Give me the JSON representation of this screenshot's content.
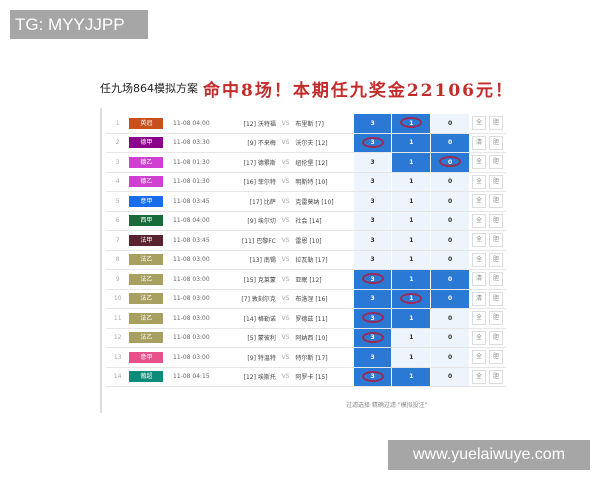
{
  "watermarks": {
    "top_left": "TG: MYYJJPP",
    "bottom_right": "www.yuelaiwuye.com"
  },
  "title": "任九场864模拟方案",
  "headline": "命中8场！本期任九奖金22106元！",
  "rows": [
    {
      "no": "1",
      "league": "英冠",
      "color": "#c8501e",
      "time": "11-08 04:00",
      "home": "[12] 沃特福",
      "away": "布里斯 [7]",
      "sel": [
        true,
        true,
        false
      ],
      "circle": 1,
      "btn": "全"
    },
    {
      "no": "2",
      "league": "德甲",
      "color": "#8b008b",
      "time": "11-08 03:30",
      "home": "[9] 不来梅",
      "away": "沃尔夫 [12]",
      "sel": [
        true,
        true,
        true
      ],
      "circle": 0,
      "btn": "清"
    },
    {
      "no": "3",
      "league": "德乙",
      "color": "#d040d0",
      "time": "11-08 01:30",
      "home": "[17] 德累斯",
      "away": "纽伦堡 [12]",
      "sel": [
        false,
        true,
        true
      ],
      "circle": 2,
      "btn": "全"
    },
    {
      "no": "4",
      "league": "德乙",
      "color": "#d040d0",
      "time": "11-08 01:30",
      "home": "[16] 菲尔特",
      "away": "明斯特 [10]",
      "sel": [
        false,
        false,
        false
      ],
      "circle": -1,
      "btn": "全"
    },
    {
      "no": "5",
      "league": "意甲",
      "color": "#1a6ce8",
      "time": "11-08 03:45",
      "home": "[17] 比萨",
      "away": "克雷莫纳 [10]",
      "sel": [
        false,
        false,
        false
      ],
      "circle": -1,
      "btn": "全"
    },
    {
      "no": "6",
      "league": "西甲",
      "color": "#1a6b3a",
      "time": "11-08 04:00",
      "home": "[9] 埃尔切",
      "away": "社会 [14]",
      "sel": [
        false,
        false,
        false
      ],
      "circle": -1,
      "btn": "全"
    },
    {
      "no": "7",
      "league": "法甲",
      "color": "#5a2230",
      "time": "11-08 03:45",
      "home": "[11] 巴黎FC",
      "away": "雷恩 [10]",
      "sel": [
        false,
        false,
        false
      ],
      "circle": -1,
      "btn": "全"
    },
    {
      "no": "8",
      "league": "法乙",
      "color": "#a8a060",
      "time": "11-08 03:00",
      "home": "[13] 南锡",
      "away": "拉瓦勒 [17]",
      "sel": [
        false,
        false,
        false
      ],
      "circle": -1,
      "btn": "全"
    },
    {
      "no": "9",
      "league": "法乙",
      "color": "#a8a060",
      "time": "11-08 03:00",
      "home": "[15] 克莱蒙",
      "away": "亚眠 [12]",
      "sel": [
        true,
        true,
        true
      ],
      "circle": 0,
      "btn": "清"
    },
    {
      "no": "10",
      "league": "法乙",
      "color": "#a8a060",
      "time": "11-08 03:00",
      "home": "[7] 敦刻尔克",
      "away": "布洛涅 [16]",
      "sel": [
        true,
        true,
        true
      ],
      "circle": 1,
      "btn": "清"
    },
    {
      "no": "11",
      "league": "法乙",
      "color": "#a8a060",
      "time": "11-08 03:00",
      "home": "[14] 格勒诺",
      "away": "罗德兹 [11]",
      "sel": [
        true,
        true,
        false
      ],
      "circle": 0,
      "btn": "全"
    },
    {
      "no": "12",
      "league": "法乙",
      "color": "#a8a060",
      "time": "11-08 03:00",
      "home": "[5] 蒙彼利",
      "away": "阿纳西 [10]",
      "sel": [
        true,
        false,
        false
      ],
      "circle": 0,
      "btn": "全"
    },
    {
      "no": "13",
      "league": "意甲",
      "color": "#e8508a",
      "time": "11-08 03:00",
      "home": "[9] 特温特",
      "away": "特尔斯 [17]",
      "sel": [
        true,
        false,
        false
      ],
      "circle": -1,
      "btn": "全"
    },
    {
      "no": "14",
      "league": "葡超",
      "color": "#0e8a78",
      "time": "11-08 04:15",
      "home": "[12] 埃斯托",
      "away": "阿罗卡 [15]",
      "sel": [
        true,
        true,
        false
      ],
      "circle": 0,
      "btn": "全"
    }
  ],
  "vs": "VS",
  "options": [
    "3",
    "1",
    "0"
  ],
  "btn2": "胆",
  "footer": "过滤选择 精确过滤 \"模拟投注\""
}
